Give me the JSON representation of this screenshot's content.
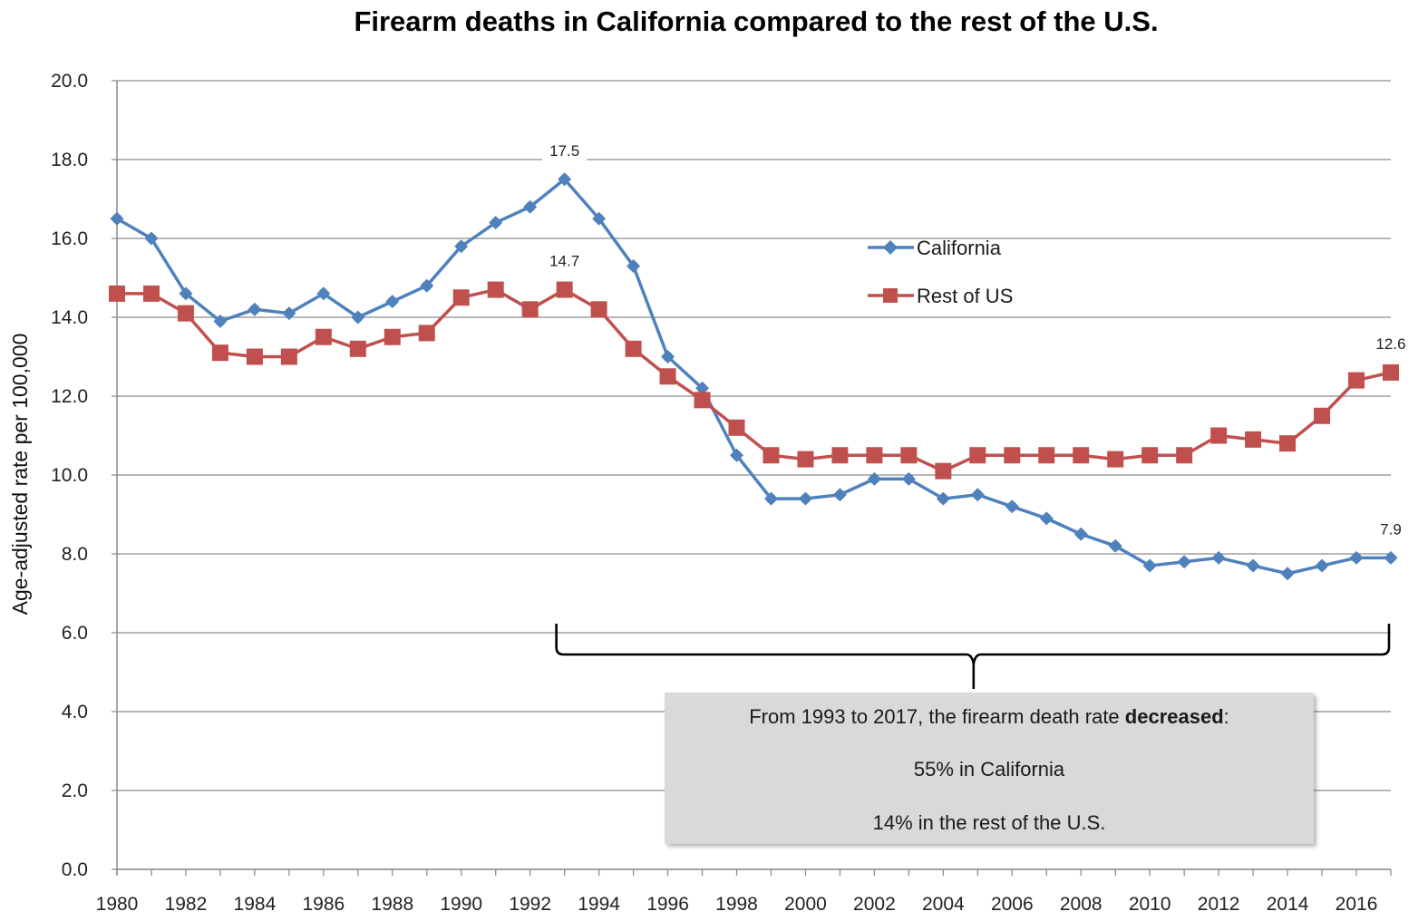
{
  "chart_data": {
    "type": "line",
    "title": "Firearm deaths in California compared to the rest of the U.S.",
    "xlabel": "",
    "ylabel": "Age-adjusted rate per 100,000",
    "ylim": [
      0,
      20
    ],
    "yticks": [
      "0.0",
      "2.0",
      "4.0",
      "6.0",
      "8.0",
      "10.0",
      "12.0",
      "14.0",
      "16.0",
      "18.0",
      "20.0"
    ],
    "ytick_values": [
      0,
      2,
      4,
      6,
      8,
      10,
      12,
      14,
      16,
      18,
      20
    ],
    "x": [
      1980,
      1981,
      1982,
      1983,
      1984,
      1985,
      1986,
      1987,
      1988,
      1989,
      1990,
      1991,
      1992,
      1993,
      1994,
      1995,
      1996,
      1997,
      1998,
      1999,
      2000,
      2001,
      2002,
      2003,
      2004,
      2005,
      2006,
      2007,
      2008,
      2009,
      2010,
      2011,
      2012,
      2013,
      2014,
      2015,
      2016,
      2017
    ],
    "xlim": [
      1980,
      2017
    ],
    "xtick_labels": [
      "1980",
      "1982",
      "1984",
      "1986",
      "1988",
      "1990",
      "1992",
      "1994",
      "1996",
      "1998",
      "2000",
      "2002",
      "2004",
      "2006",
      "2008",
      "2010",
      "2012",
      "2014",
      "2016"
    ],
    "grid": "horizontal",
    "legend_position": "upper-right-center",
    "series": [
      {
        "name": "California",
        "color": "#4F81BD",
        "marker": "diamond",
        "values": [
          16.5,
          16.0,
          14.6,
          13.9,
          14.2,
          14.1,
          14.6,
          14.0,
          14.4,
          14.8,
          15.8,
          16.4,
          16.8,
          17.5,
          16.5,
          15.3,
          13.0,
          12.2,
          10.5,
          9.4,
          9.4,
          9.5,
          9.9,
          9.9,
          9.4,
          9.5,
          9.2,
          8.9,
          8.5,
          8.2,
          7.7,
          7.8,
          7.9,
          7.7,
          7.5,
          7.7,
          7.9,
          7.9
        ]
      },
      {
        "name": "Rest of US",
        "color": "#C0504D",
        "marker": "square",
        "values": [
          14.6,
          14.6,
          14.1,
          13.1,
          13.0,
          13.0,
          13.5,
          13.2,
          13.5,
          13.6,
          14.5,
          14.7,
          14.2,
          14.7,
          14.2,
          13.2,
          12.5,
          11.9,
          11.2,
          10.5,
          10.4,
          10.5,
          10.5,
          10.5,
          10.1,
          10.5,
          10.5,
          10.5,
          10.5,
          10.4,
          10.5,
          10.5,
          11.0,
          10.9,
          10.8,
          11.5,
          12.4,
          12.6
        ]
      }
    ],
    "data_labels": [
      {
        "series": "California",
        "year": 1993,
        "text": "17.5"
      },
      {
        "series": "Rest of US",
        "year": 1993,
        "text": "14.7"
      },
      {
        "series": "Rest of US",
        "year": 2017,
        "text": "12.6"
      },
      {
        "series": "California",
        "year": 2017,
        "text": "7.9"
      }
    ],
    "annotation": {
      "bracket_from_year": 1993,
      "bracket_to_year": 2017,
      "line1_prefix": "From 1993 to 2017, the firearm death rate ",
      "line1_bold": "decreased",
      "line1_suffix": ":",
      "line2": "55% in California",
      "line3": "14% in the rest of the U.S."
    }
  }
}
